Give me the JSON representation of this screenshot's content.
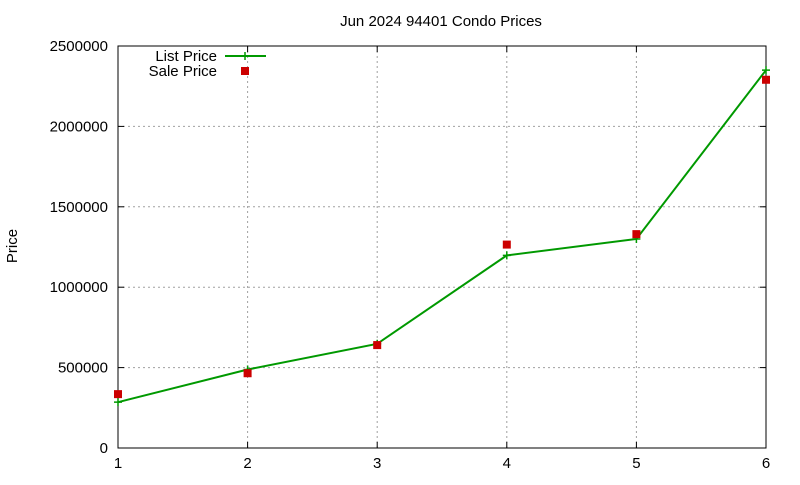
{
  "chart_data": {
    "type": "line",
    "title": "Jun 2024 94401 Condo Prices",
    "xlabel": "",
    "ylabel": "Price",
    "x": [
      1,
      2,
      3,
      4,
      5,
      6
    ],
    "xlim": [
      1,
      6
    ],
    "ylim": [
      0,
      2500000
    ],
    "xticks": [
      "1",
      "2",
      "3",
      "4",
      "5",
      "6"
    ],
    "yticks": [
      "0",
      "500000",
      "1000000",
      "1500000",
      "2000000",
      "2500000"
    ],
    "grid": true,
    "legend_position": "top-left",
    "series": [
      {
        "name": "List Price",
        "style": "line+cross",
        "color": "#009900",
        "values": [
          285000,
          488000,
          648000,
          1198000,
          1300000,
          2350000
        ]
      },
      {
        "name": "Sale Price",
        "style": "square-markers",
        "color": "#cc0000",
        "values": [
          335000,
          465000,
          640000,
          1265000,
          1330000,
          2290000
        ]
      }
    ]
  }
}
